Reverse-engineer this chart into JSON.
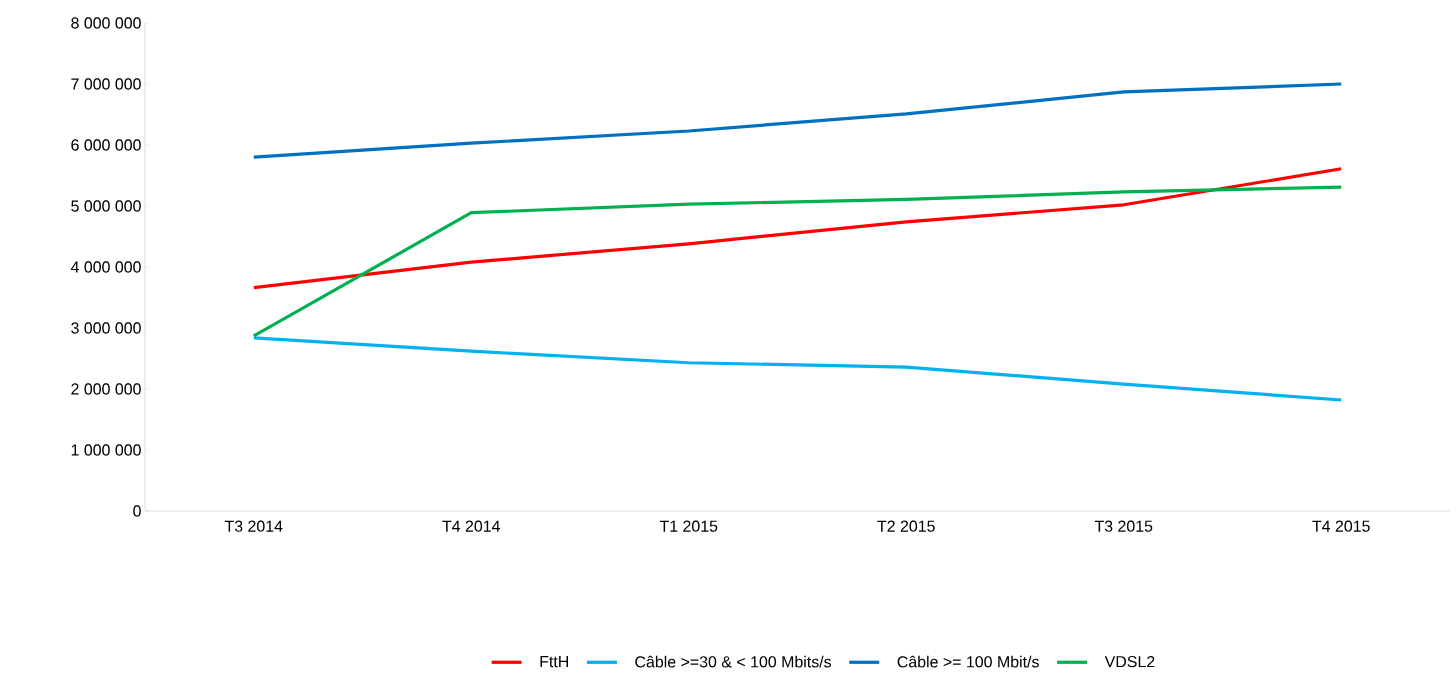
{
  "chart_data": {
    "type": "line",
    "categories": [
      "T3 2014",
      "T4 2014",
      "T1 2015",
      "T2 2015",
      "T3 2015",
      "T4 2015"
    ],
    "series": [
      {
        "name": "FttH",
        "color": "#ff0000",
        "values": [
          3660000,
          4080000,
          4380000,
          4740000,
          5020000,
          5610000
        ]
      },
      {
        "name": "Câble >=30 & < 100 Mbits/s",
        "color": "#00b0f0",
        "values": [
          2840000,
          2620000,
          2430000,
          2360000,
          2080000,
          1820000
        ]
      },
      {
        "name": "Câble >= 100 Mbit/s",
        "color": "#0070c0",
        "values": [
          5800000,
          6030000,
          6230000,
          6510000,
          6870000,
          7000000
        ]
      },
      {
        "name": "VDSL2",
        "color": "#00b050",
        "values": [
          2870000,
          4890000,
          5030000,
          5110000,
          5230000,
          5310000
        ]
      }
    ],
    "ylim": [
      0,
      8000000
    ],
    "yticks": [
      {
        "value": 0,
        "label": "0"
      },
      {
        "value": 1000000,
        "label": "1 000 000"
      },
      {
        "value": 2000000,
        "label": "2 000 000"
      },
      {
        "value": 3000000,
        "label": "3 000 000"
      },
      {
        "value": 4000000,
        "label": "4 000 000"
      },
      {
        "value": 5000000,
        "label": "5 000 000"
      },
      {
        "value": 6000000,
        "label": "6 000 000"
      },
      {
        "value": 7000000,
        "label": "7 000 000"
      },
      {
        "value": 8000000,
        "label": "8 000 000"
      }
    ],
    "grid": false,
    "legend": "bottom",
    "marker": "none",
    "line_style": "solid"
  }
}
